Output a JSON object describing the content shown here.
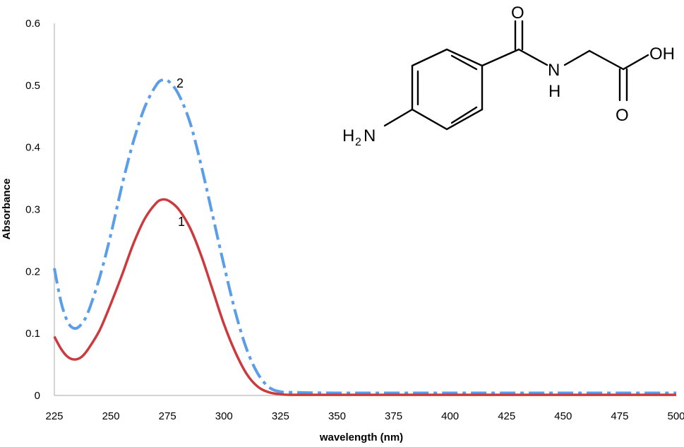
{
  "chart_data": {
    "type": "line",
    "title": "",
    "xlabel": "wavelength (nm)",
    "ylabel": "Absorbance",
    "xlim": [
      225,
      500
    ],
    "ylim": [
      0,
      0.6
    ],
    "x_ticks": [
      "225",
      "250",
      "275",
      "300",
      "325",
      "350",
      "375",
      "400",
      "425",
      "450",
      "475",
      "500"
    ],
    "y_ticks": [
      "0",
      "0.1",
      "0.2",
      "0.3",
      "0.4",
      "0.5",
      "0.6"
    ],
    "grid": false,
    "series": [
      {
        "label": "1",
        "color": "#cc3a3d",
        "style": "solid",
        "points": [
          [
            225,
            0.095
          ],
          [
            228,
            0.075
          ],
          [
            231,
            0.062
          ],
          [
            234,
            0.058
          ],
          [
            237,
            0.062
          ],
          [
            240,
            0.075
          ],
          [
            245,
            0.105
          ],
          [
            250,
            0.148
          ],
          [
            255,
            0.195
          ],
          [
            260,
            0.245
          ],
          [
            265,
            0.285
          ],
          [
            270,
            0.31
          ],
          [
            273,
            0.316
          ],
          [
            276,
            0.313
          ],
          [
            280,
            0.3
          ],
          [
            285,
            0.27
          ],
          [
            290,
            0.225
          ],
          [
            295,
            0.17
          ],
          [
            300,
            0.115
          ],
          [
            305,
            0.07
          ],
          [
            310,
            0.035
          ],
          [
            315,
            0.014
          ],
          [
            320,
            0.005
          ],
          [
            325,
            0.002
          ],
          [
            330,
            0.001
          ],
          [
            350,
            0.001
          ],
          [
            400,
            0.001
          ],
          [
            450,
            0.001
          ],
          [
            500,
            0.001
          ]
        ]
      },
      {
        "label": "2",
        "color": "#5a9de8",
        "style": "dash-dot",
        "points": [
          [
            225,
            0.205
          ],
          [
            228,
            0.15
          ],
          [
            231,
            0.118
          ],
          [
            234,
            0.108
          ],
          [
            237,
            0.115
          ],
          [
            240,
            0.135
          ],
          [
            245,
            0.19
          ],
          [
            250,
            0.26
          ],
          [
            255,
            0.34
          ],
          [
            260,
            0.41
          ],
          [
            265,
            0.465
          ],
          [
            270,
            0.5
          ],
          [
            273,
            0.509
          ],
          [
            276,
            0.505
          ],
          [
            280,
            0.485
          ],
          [
            285,
            0.44
          ],
          [
            290,
            0.37
          ],
          [
            295,
            0.29
          ],
          [
            300,
            0.21
          ],
          [
            305,
            0.135
          ],
          [
            310,
            0.075
          ],
          [
            315,
            0.035
          ],
          [
            320,
            0.013
          ],
          [
            325,
            0.006
          ],
          [
            330,
            0.005
          ],
          [
            350,
            0.004
          ],
          [
            400,
            0.004
          ],
          [
            450,
            0.004
          ],
          [
            500,
            0.004
          ]
        ]
      }
    ],
    "annotations": [
      "1",
      "2"
    ],
    "inset": {
      "type": "chemical-structure",
      "labels": {
        "amine": "H",
        "amine_sub": "2",
        "amine_n": "N",
        "amide_n": "N",
        "amide_h": "H",
        "carbonyl_o": "O",
        "acid_oh": "OH",
        "acid_o": "O"
      }
    }
  }
}
